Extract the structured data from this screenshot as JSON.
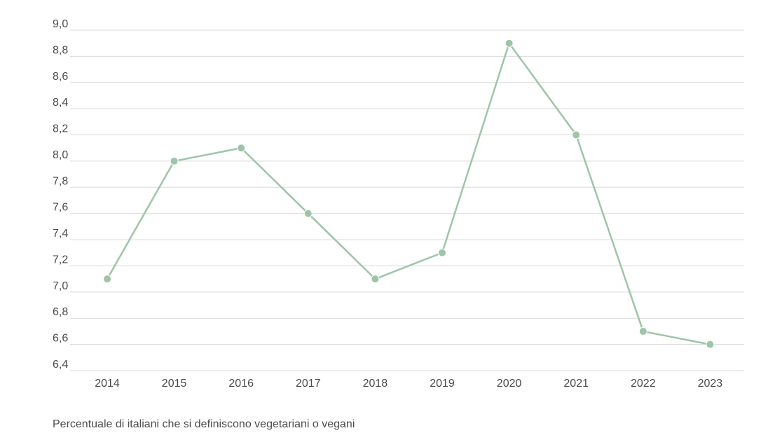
{
  "chart_data": {
    "type": "line",
    "categories": [
      "2014",
      "2015",
      "2016",
      "2017",
      "2018",
      "2019",
      "2020",
      "2021",
      "2022",
      "2023"
    ],
    "values": [
      7.1,
      8.0,
      8.1,
      7.6,
      7.1,
      7.3,
      8.9,
      8.2,
      6.7,
      6.6
    ],
    "ylim": [
      6.4,
      9.0
    ],
    "yticks": [
      6.4,
      6.6,
      6.8,
      7.0,
      7.2,
      7.4,
      7.6,
      7.8,
      8.0,
      8.2,
      8.4,
      8.6,
      8.8,
      9.0
    ],
    "ytick_labels": [
      "6,4",
      "6,6",
      "6,8",
      "7,0",
      "7,2",
      "7,4",
      "7,6",
      "7,8",
      "8,0",
      "8,2",
      "8,4",
      "8,6",
      "8,8",
      "9,0"
    ],
    "grid": true,
    "line_color": "#9ec5a8",
    "caption": "Percentuale di italiani che si definiscono vegetariani o vegani"
  }
}
